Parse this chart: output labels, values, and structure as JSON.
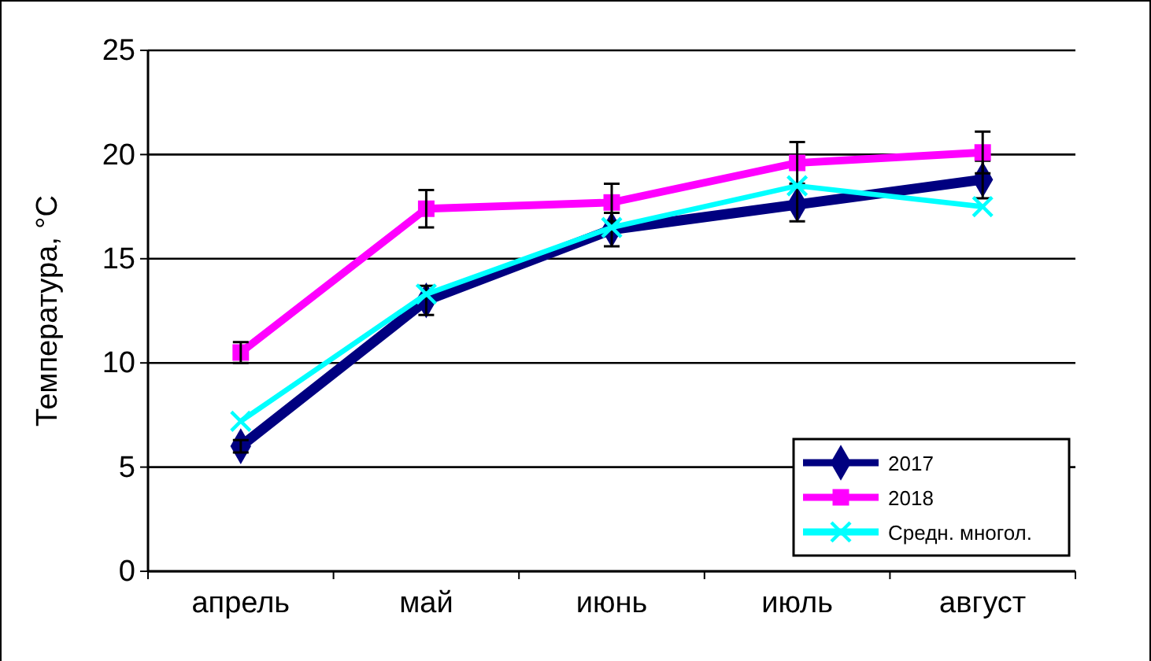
{
  "chart_data": {
    "type": "line",
    "ylabel": "Температура, °С",
    "categories": [
      "апрель",
      "май",
      "июнь",
      "июль",
      "август"
    ],
    "ylim": [
      0,
      25
    ],
    "yticks": [
      0,
      5,
      10,
      15,
      20,
      25
    ],
    "grid": "y",
    "legend": "bottom right",
    "line_style": "solid",
    "series": [
      {
        "name": "2017",
        "color": "#000080",
        "marker": "diamond",
        "values": [
          6.0,
          13.0,
          16.4,
          17.6,
          18.8
        ],
        "errors": [
          0.3,
          0.7,
          0.8,
          0.8,
          0.9
        ]
      },
      {
        "name": "2018",
        "color": "#ff00ff",
        "marker": "square",
        "values": [
          10.5,
          17.4,
          17.7,
          19.6,
          20.1
        ],
        "errors": [
          0.5,
          0.9,
          0.9,
          1.0,
          1.0
        ]
      },
      {
        "name": "Средн. многол.",
        "color": "#00ffff",
        "marker": "cross",
        "values": [
          7.2,
          13.3,
          16.5,
          18.5,
          17.5
        ]
      }
    ]
  }
}
